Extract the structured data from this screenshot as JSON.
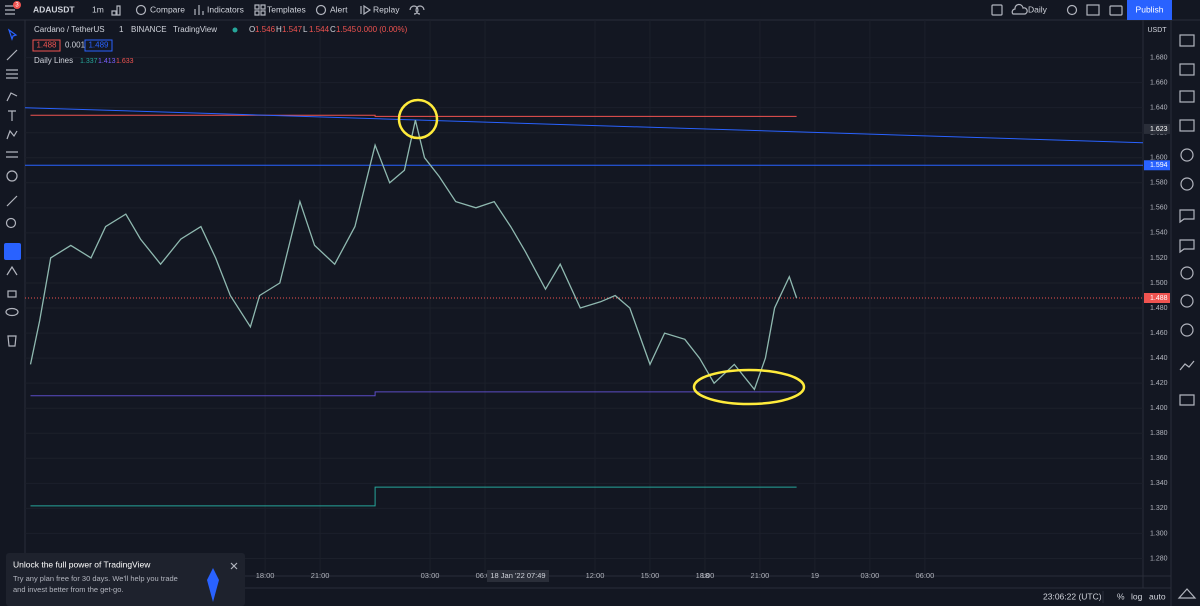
{
  "ui": {
    "symbol": "ADAUSDT",
    "interval": "1m",
    "badge": "3",
    "compare": "Compare",
    "indicators": "Indicators",
    "templates": "Templates",
    "alert": "Alert",
    "replay": "Replay",
    "timeframe": "Daily",
    "publish": "Publish",
    "legend_name": "Cardano / TetherUS",
    "legend_interval": "1",
    "legend_exchange": "BINANCE",
    "legend_source": "TradingView",
    "change": "0.000 (0.00%)",
    "bid": "1.488",
    "spread": "0.001",
    "ask": "1.489",
    "indicator_name": "Daily Lines",
    "axis_currency": "USDT",
    "cursor_time": "18 Jan '22  07:49",
    "clock": "23:06:22 (UTC)",
    "percent": "%",
    "log": "log",
    "auto": "auto",
    "promo_title": "Unlock the full power of TradingView",
    "promo_lines": [
      "Try any plan free for 30 days. We'll help you trade",
      "and invest better from the get-go."
    ]
  },
  "chart_data": {
    "type": "line",
    "legend_ohlc": [
      {
        "label": "O",
        "value": 1.546
      },
      {
        "label": "H",
        "value": 1.547
      },
      {
        "label": "L",
        "value": 1.544
      },
      {
        "label": "C",
        "value": 1.545
      }
    ],
    "daily_lines": [
      {
        "value": 1.337,
        "color": "#26a69a"
      },
      {
        "value": 1.413,
        "color": "#7b61ff"
      },
      {
        "value": 1.633,
        "color": "#ef5350"
      }
    ],
    "price": {
      "color": "#8fb9b0",
      "x": [
        -18.8,
        -18.3,
        -17.7,
        -16.6,
        -15.5,
        -14.7,
        -13.6,
        -12.8,
        -11.7,
        -10.6,
        -9.5,
        -8.7,
        -7.9,
        -6.8,
        -6.3,
        -5.2,
        -4.1,
        -3.3,
        -2.2,
        -1.1,
        0,
        0.8,
        1.6,
        2.2,
        2.7,
        3.5,
        4.4,
        5.5,
        6.5,
        7.4,
        8.2,
        9.3,
        10.1,
        11.2,
        12.3,
        13.1,
        13.9,
        15.0,
        15.8,
        16.9,
        17.7,
        18.5,
        19.6,
        20.7,
        21.3,
        21.8,
        22.6,
        23.0
      ],
      "values": [
        1.435,
        1.47,
        1.52,
        1.53,
        1.52,
        1.545,
        1.555,
        1.535,
        1.515,
        1.535,
        1.545,
        1.52,
        1.49,
        1.465,
        1.49,
        1.5,
        1.565,
        1.53,
        1.515,
        1.545,
        1.61,
        1.58,
        1.59,
        1.63,
        1.6,
        1.585,
        1.565,
        1.56,
        1.565,
        1.545,
        1.525,
        1.495,
        1.515,
        1.48,
        1.485,
        1.49,
        1.48,
        1.435,
        1.46,
        1.455,
        1.44,
        1.42,
        1.435,
        1.415,
        1.44,
        1.48,
        1.505,
        1.488
      ]
    },
    "lines": [
      {
        "color": "#ef5350",
        "x": [
          -18.8,
          0,
          0,
          23
        ],
        "values": [
          1.634,
          1.634,
          1.633,
          1.633
        ]
      },
      {
        "color": "#5b4cc4",
        "x": [
          -18.8,
          0,
          0,
          23
        ],
        "values": [
          1.41,
          1.41,
          1.413,
          1.413
        ]
      },
      {
        "color": "#26a69a",
        "x": [
          -18.8,
          0,
          0,
          23
        ],
        "values": [
          1.322,
          1.322,
          1.337,
          1.337
        ]
      },
      {
        "color": "#2962ff",
        "x": [
          -19.1,
          41.9
        ],
        "values": [
          1.64,
          1.612
        ]
      },
      {
        "color": "#2962ff",
        "x": [
          -19.1,
          41.9
        ],
        "values": [
          1.594,
          1.594
        ]
      },
      {
        "color": "#ef5350",
        "x": [
          -19.1,
          41.9
        ],
        "values": [
          1.488,
          1.488
        ],
        "dashed": true
      }
    ],
    "axis_labels": [
      {
        "value": 1.623,
        "color": "#2a2e39"
      },
      {
        "value": 1.594,
        "color": "#2962ff"
      },
      {
        "value": 1.488,
        "color": "#ef5350"
      }
    ],
    "xlim": [
      -19.1,
      41.9
    ],
    "ylim": [
      1.266,
      1.71
    ],
    "grid": true,
    "xticks": [
      {
        "value": -6,
        "label": "18:00"
      },
      {
        "value": -3,
        "label": "21:00"
      },
      18,
      {
        "value": 3,
        "label": "03:00"
      },
      {
        "value": 6,
        "label": "06:00"
      },
      {
        "value": 12,
        "label": "12:00"
      },
      {
        "value": 15,
        "label": "15:00"
      },
      {
        "value": 18,
        "label": "18:00"
      },
      {
        "value": 21,
        "label": "21:00"
      },
      {
        "value": 24,
        "label": "19"
      },
      {
        "value": 27,
        "label": "03:00"
      },
      {
        "value": 30,
        "label": "06:00"
      }
    ],
    "yticks": [
      {
        "value": 1.28,
        "label": "1.280"
      },
      {
        "value": 1.3,
        "label": "1.300"
      },
      {
        "value": 1.32,
        "label": "1.320"
      },
      {
        "value": 1.34,
        "label": "1.340"
      },
      {
        "value": 1.36,
        "label": "1.360"
      },
      {
        "value": 1.38,
        "label": "1.380"
      },
      {
        "value": 1.4,
        "label": "1.400"
      },
      {
        "value": 1.42,
        "label": "1.420"
      },
      {
        "value": 1.44,
        "label": "1.440"
      },
      {
        "value": 1.46,
        "label": "1.460"
      },
      {
        "value": 1.48,
        "label": "1.480"
      },
      {
        "value": 1.5,
        "label": "1.500"
      },
      {
        "value": 1.52,
        "label": "1.520"
      },
      {
        "value": 1.54,
        "label": "1.540"
      },
      {
        "value": 1.56,
        "label": "1.560"
      },
      {
        "value": 1.58,
        "label": "1.580"
      },
      {
        "value": 1.6,
        "label": "1.600"
      },
      {
        "value": 1.62,
        "label": "1.620"
      },
      {
        "value": 1.64,
        "label": "1.640"
      },
      {
        "value": 1.66,
        "label": "1.660"
      },
      {
        "value": 1.68,
        "label": "1.680"
      }
    ]
  }
}
